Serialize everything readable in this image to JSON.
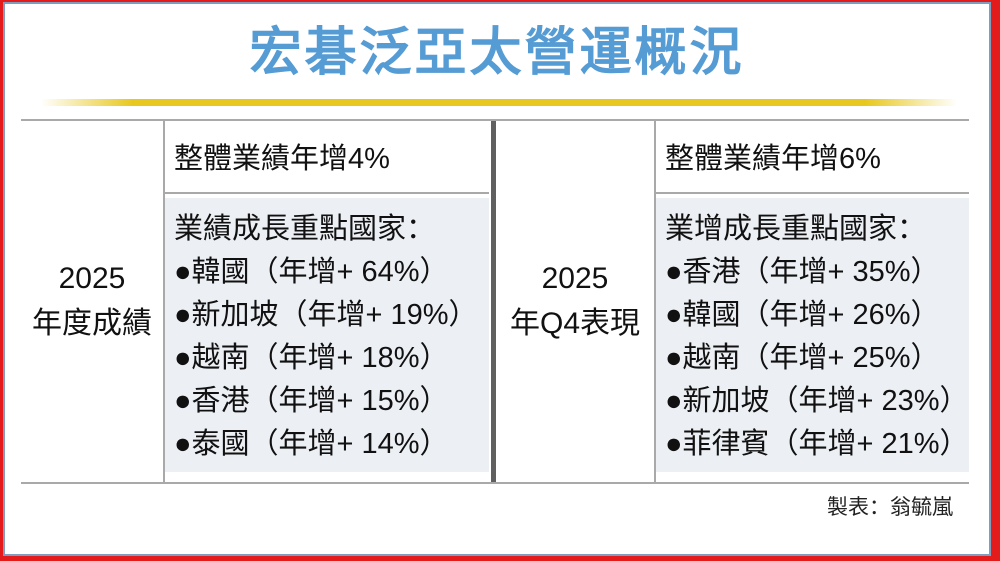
{
  "ui": {
    "title": "宏碁泛亞太營運概況",
    "credit": "製表：翁毓嵐",
    "sections": [
      {
        "label_line1": "2025",
        "label_line2": "年度成績",
        "overall": "整體業績年增4%",
        "list_header": "業績成長重點國家：",
        "items": [
          "●韓國（年增+ 64%）",
          "●新加坡（年增+ 19%）",
          "●越南（年增+ 18%）",
          "●香港（年增+ 15%）",
          "●泰國（年增+ 14%）"
        ]
      },
      {
        "label_line1": "2025",
        "label_line2": "年Q4表現",
        "overall": "整體業績年增6%",
        "list_header": "業增成長重點國家：",
        "items": [
          "●香港（年增+ 35%）",
          "●韓國（年增+ 26%）",
          "●越南（年增+ 25%）",
          "●新加坡（年增+ 23%）",
          "●菲律賓（年增+ 21%）"
        ]
      }
    ],
    "colors": {
      "title_blue": "#559bd4",
      "rule_yellow": "#e8c81e",
      "frame_red": "#e31b1b",
      "frame_blue": "#7e9dbf",
      "list_cell_bg": "#eceff4",
      "grid_line_gray": "#a9a9a9",
      "mid_divider_gray": "#606060"
    }
  },
  "chart_data": {
    "type": "table",
    "title": "宏碁泛亞太營運概況",
    "credit": "製表：翁毓嵐",
    "sections": [
      {
        "period": "2025年度成績",
        "overall_yoy_growth_pct": 4,
        "list_title": "業績成長重點國家",
        "countries": [
          {
            "name": "韓國",
            "yoy_growth_pct": 64
          },
          {
            "name": "新加坡",
            "yoy_growth_pct": 19
          },
          {
            "name": "越南",
            "yoy_growth_pct": 18
          },
          {
            "name": "香港",
            "yoy_growth_pct": 15
          },
          {
            "name": "泰國",
            "yoy_growth_pct": 14
          }
        ]
      },
      {
        "period": "2025年Q4表現",
        "overall_yoy_growth_pct": 6,
        "list_title": "業增成長重點國家",
        "countries": [
          {
            "name": "香港",
            "yoy_growth_pct": 35
          },
          {
            "name": "韓國",
            "yoy_growth_pct": 26
          },
          {
            "name": "越南",
            "yoy_growth_pct": 25
          },
          {
            "name": "新加坡",
            "yoy_growth_pct": 23
          },
          {
            "name": "菲律賓",
            "yoy_growth_pct": 21
          }
        ]
      }
    ]
  }
}
